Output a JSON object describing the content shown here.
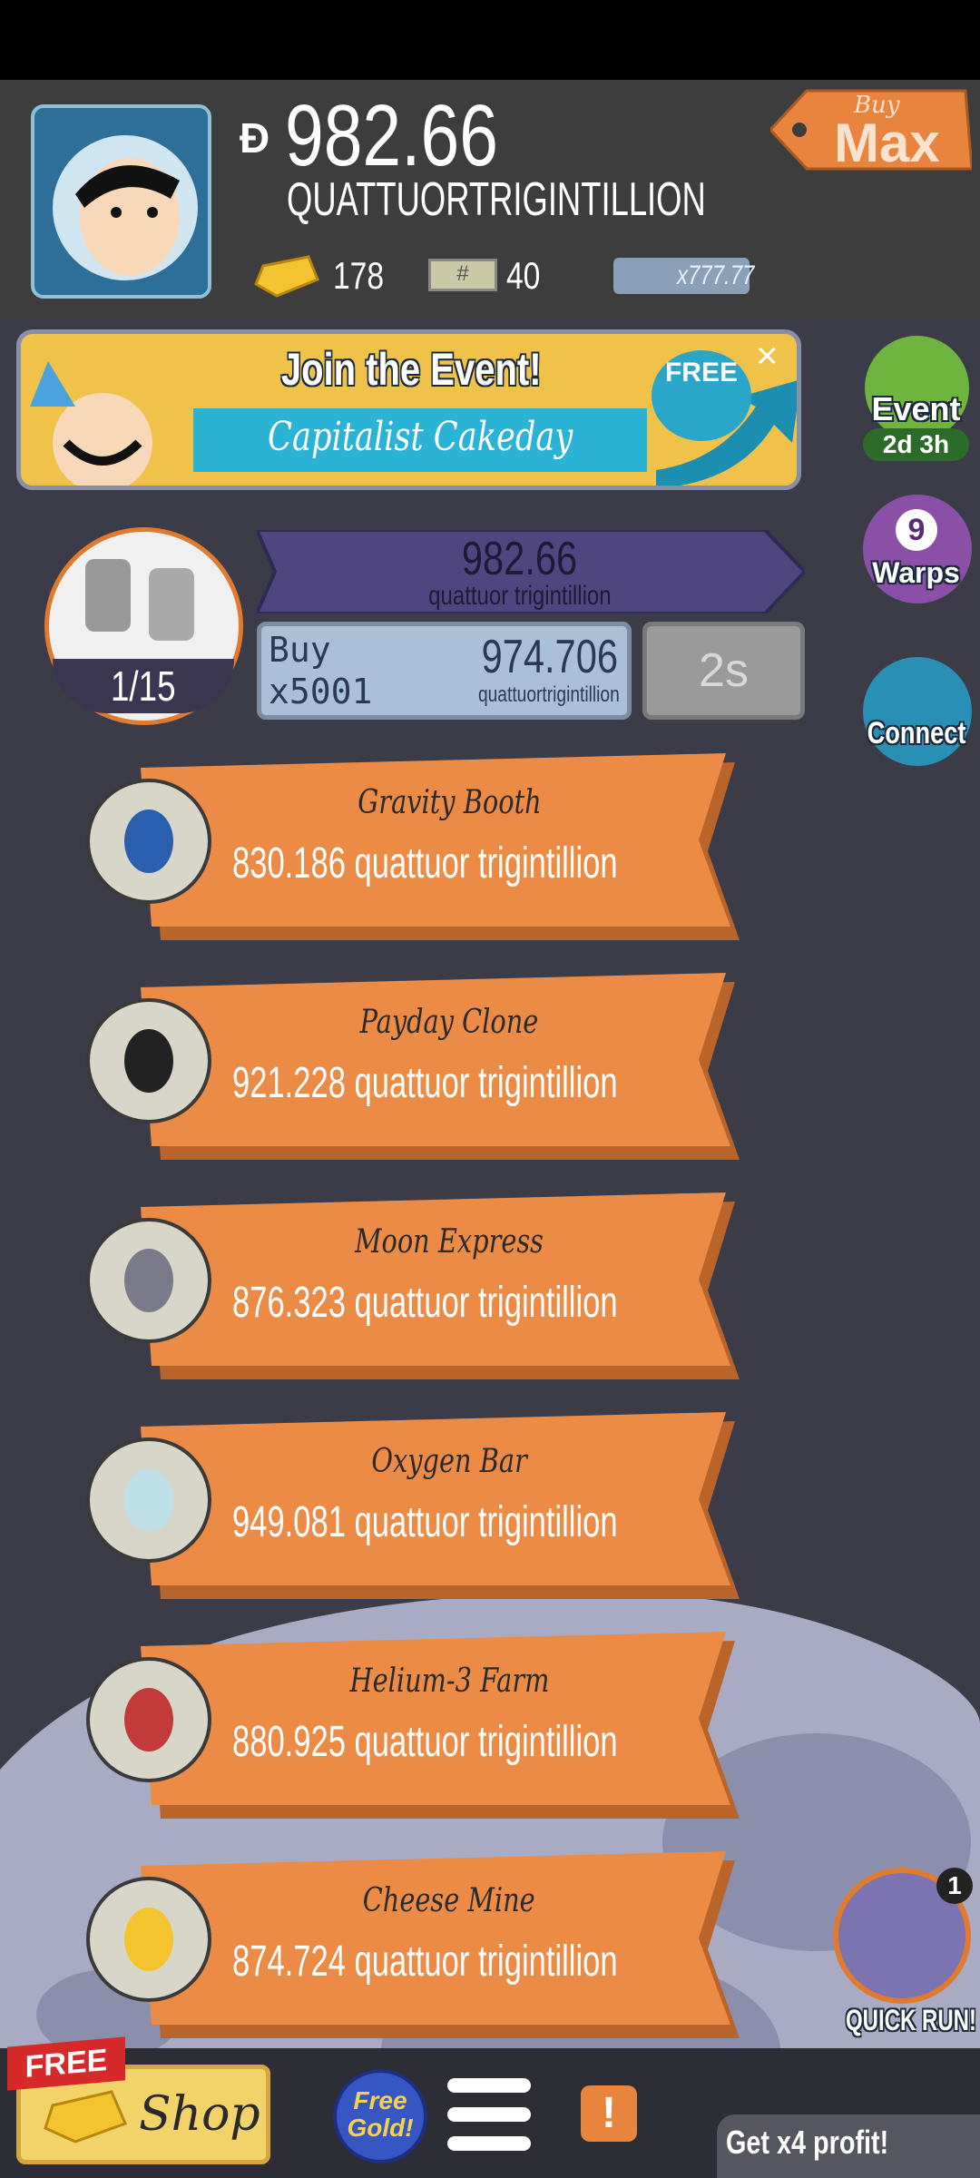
{
  "header": {
    "currency_symbol": "Đ",
    "money": "982.66",
    "money_unit": "QUATTUORTRIGINTILLION",
    "gold": "178",
    "megabucks": "40",
    "multiplier": "x777.77",
    "buy_max": {
      "small": "Buy",
      "large": "Max"
    }
  },
  "event_banner": {
    "title": "Join the Event!",
    "subtitle": "Capitalist Cakeday",
    "badge": "FREE"
  },
  "side_buttons": [
    {
      "label": "Event",
      "timer": "2d 3h"
    },
    {
      "count": "9",
      "label": "Warps"
    },
    {
      "label": "Connect"
    }
  ],
  "business": {
    "revenue": "982.66",
    "revenue_unit": "quattuor trigintillion",
    "level": "1/15",
    "buy_label": "Buy",
    "buy_quantity": "x5001",
    "cost": "974.706",
    "cost_unit": "quattuortrigintillion",
    "timer": "2s"
  },
  "list": [
    {
      "name": "Gravity Booth",
      "price": "830.186 quattuor trigintillion"
    },
    {
      "name": "Payday Clone",
      "price": "921.228 quattuor trigintillion"
    },
    {
      "name": "Moon Express",
      "price": "876.323 quattuor trigintillion"
    },
    {
      "name": "Oxygen Bar",
      "price": "949.081 quattuor trigintillion"
    },
    {
      "name": "Helium-3 Farm",
      "price": "880.925 quattuor trigintillion"
    },
    {
      "name": "Cheese Mine",
      "price": "874.724 quattuor trigintillion"
    }
  ],
  "quick_run": {
    "count": "1",
    "label": "QUICK RUN!"
  },
  "bottom_bar": {
    "shop_badge": "FREE",
    "shop": "Shop",
    "free_gold": "Free Gold!",
    "alert": "!",
    "profit": "Get x4 profit!"
  }
}
